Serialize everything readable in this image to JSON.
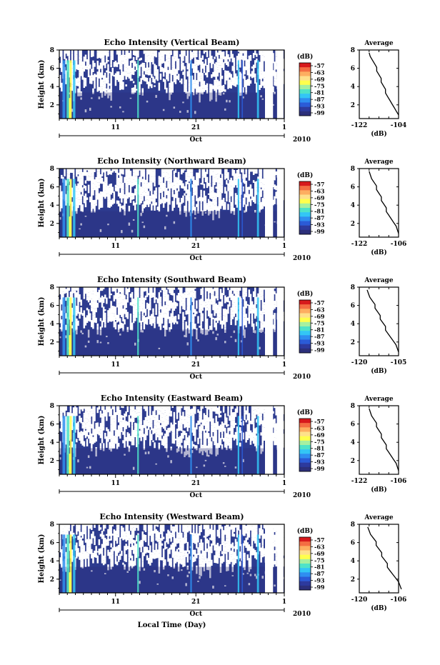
{
  "figure": {
    "xlabel": "Local Time (Day)",
    "month_label": "Oct",
    "year_label": "2010",
    "colorbar_unit": "(dB)",
    "colorbar_ticks": [
      "-57",
      "-63",
      "-69",
      "-75",
      "-81",
      "-87",
      "-93",
      "-99"
    ],
    "colorbar_colors": [
      "#d7191c",
      "#f46d43",
      "#fdae61",
      "#fee08b",
      "#ffff4d",
      "#a6f0a0",
      "#4fe3c8",
      "#33c6f5",
      "#2f8ef0",
      "#2b5bd7",
      "#2d3a9e",
      "#2c2f7a"
    ],
    "field_color": "#2d3b8f"
  },
  "chart_data": [
    {
      "type": "heatmap",
      "title": "Echo Intensity (Vertical Beam)",
      "ylabel": "Height (km)",
      "yticks": [
        "2",
        "4",
        "6",
        "8"
      ],
      "xticks": [
        "11",
        "21",
        "1"
      ],
      "ylim": [
        0.5,
        8.0
      ],
      "profile": {
        "title": "Average",
        "xlabel": "(dB)",
        "xticks": [
          "-122",
          "-104"
        ],
        "yticks": [
          "2",
          "4",
          "6",
          "8"
        ],
        "x": [
          -117.5,
          -117,
          -116,
          -115,
          -114,
          -114,
          -113,
          -112,
          -112,
          -111,
          -110,
          -110,
          -109,
          -108,
          -107,
          -106,
          -105,
          -104
        ],
        "y": [
          7.7,
          7.3,
          6.9,
          6.5,
          6.1,
          5.7,
          5.3,
          4.9,
          4.5,
          4.1,
          3.7,
          3.3,
          2.9,
          2.5,
          2.1,
          1.7,
          1.3,
          0.9
        ]
      }
    },
    {
      "type": "heatmap",
      "title": "Echo Intensity (Northward Beam)",
      "ylabel": "Height (km)",
      "yticks": [
        "2",
        "4",
        "6",
        "8"
      ],
      "xticks": [
        "11",
        "21",
        "1"
      ],
      "ylim": [
        0.5,
        8.0
      ],
      "profile": {
        "title": "Average",
        "xlabel": "(dB)",
        "xticks": [
          "-122",
          "-106"
        ],
        "yticks": [
          "2",
          "4",
          "6",
          "8"
        ],
        "x": [
          -118,
          -117.5,
          -117,
          -116,
          -115,
          -115,
          -114,
          -113,
          -113,
          -112,
          -111,
          -111,
          -110,
          -109,
          -108,
          -107,
          -106.5,
          -106
        ],
        "y": [
          7.7,
          7.3,
          6.9,
          6.5,
          6.1,
          5.7,
          5.3,
          4.9,
          4.5,
          4.1,
          3.7,
          3.3,
          2.9,
          2.5,
          2.1,
          1.7,
          1.3,
          0.9
        ]
      }
    },
    {
      "type": "heatmap",
      "title": "Echo Intensity (Southward Beam)",
      "ylabel": "Height (km)",
      "yticks": [
        "2",
        "4",
        "6",
        "8"
      ],
      "xticks": [
        "11",
        "21",
        "1"
      ],
      "ylim": [
        0.5,
        8.0
      ],
      "profile": {
        "title": "Average",
        "xlabel": "(dB)",
        "xticks": [
          "-120",
          "-105"
        ],
        "yticks": [
          "2",
          "4",
          "6",
          "8"
        ],
        "x": [
          -117,
          -116.5,
          -116,
          -115,
          -114,
          -114,
          -113,
          -112,
          -112,
          -111,
          -110,
          -110,
          -109,
          -108,
          -107,
          -106,
          -105.5,
          -105
        ],
        "y": [
          7.7,
          7.3,
          6.9,
          6.5,
          6.1,
          5.7,
          5.3,
          4.9,
          4.5,
          4.1,
          3.7,
          3.3,
          2.9,
          2.5,
          2.1,
          1.7,
          1.3,
          0.9
        ]
      }
    },
    {
      "type": "heatmap",
      "title": "Echo Intensity (Eastward Beam)",
      "ylabel": "Height (km)",
      "yticks": [
        "2",
        "4",
        "6",
        "8"
      ],
      "xticks": [
        "11",
        "21",
        "1"
      ],
      "ylim": [
        0.5,
        8.0
      ],
      "profile": {
        "title": "Average",
        "xlabel": "(dB)",
        "xticks": [
          "-122",
          "-106"
        ],
        "yticks": [
          "2",
          "4",
          "6",
          "8"
        ],
        "x": [
          -118,
          -117.5,
          -117,
          -116,
          -115,
          -115,
          -114,
          -113,
          -113,
          -112,
          -111,
          -111,
          -110,
          -109,
          -108,
          -107,
          -106.5,
          -106
        ],
        "y": [
          7.7,
          7.3,
          6.9,
          6.5,
          6.1,
          5.7,
          5.3,
          4.9,
          4.5,
          4.1,
          3.7,
          3.3,
          2.9,
          2.5,
          2.1,
          1.7,
          1.3,
          0.9
        ]
      }
    },
    {
      "type": "heatmap",
      "title": "Echo Intensity (Westward Beam)",
      "ylabel": "Height (km)",
      "yticks": [
        "2",
        "4",
        "6",
        "8"
      ],
      "xticks": [
        "11",
        "21",
        "1"
      ],
      "ylim": [
        0.5,
        8.0
      ],
      "profile": {
        "title": "Average",
        "xlabel": "(dB)",
        "xticks": [
          "-120",
          "-106"
        ],
        "yticks": [
          "2",
          "4",
          "6",
          "8"
        ],
        "x": [
          -117,
          -116.5,
          -116,
          -115,
          -114,
          -114,
          -113,
          -112,
          -112,
          -111,
          -110,
          -110,
          -109,
          -108,
          -107,
          -106,
          -105.5,
          -105
        ],
        "y": [
          7.7,
          7.3,
          6.9,
          6.5,
          6.1,
          5.7,
          5.3,
          4.9,
          4.5,
          4.1,
          3.7,
          3.3,
          2.9,
          2.5,
          2.1,
          1.7,
          1.3,
          0.9
        ]
      }
    }
  ]
}
